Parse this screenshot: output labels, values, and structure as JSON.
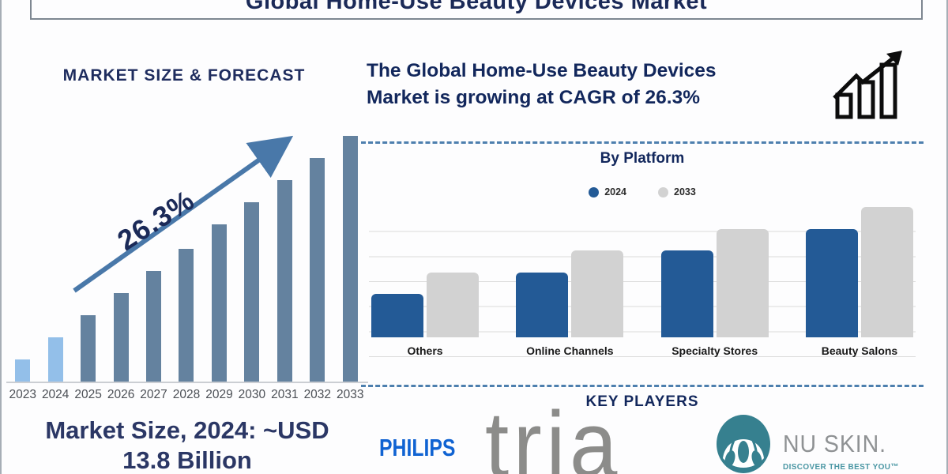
{
  "page": {
    "title": "Global Home-Use Beauty Devices Market"
  },
  "left_panel": {
    "heading": "MARKET SIZE & FORECAST",
    "footer_line1": "Market Size, 2024: ~USD",
    "footer_line2": "13.8 Billion"
  },
  "right_panel": {
    "headline_line1": "The Global Home-Use Beauty Devices",
    "headline_line2": "Market is growing at CAGR of 26.3%",
    "key_players": {
      "heading": "KEY PLAYERS",
      "philips_label": "PHILIPS",
      "tria_label": "tria",
      "nuskin_label": "NU SKIN.",
      "nuskin_tagline": "DISCOVER THE BEST YOU™"
    }
  },
  "icons": {
    "growth": "growth-chart-icon",
    "nuskin_mark": "nu-skin-logo-icon"
  },
  "colors": {
    "navy_text": "#1b2a58",
    "forecast_bar": "#64829f",
    "forecast_bar_highlight": "#93bfe9",
    "platform_2024": "#235a96",
    "platform_2033": "#d2d2d2",
    "dashed_divider": "#4d7fae",
    "arrow": "#4978a9",
    "philips_blue": "#1063d2",
    "tria_gray": "#8c8c8a",
    "nuskin_teal": "#36808f"
  },
  "chart_data": [
    {
      "type": "bar",
      "title": "MARKET SIZE & FORECAST",
      "categories": [
        "2023",
        "2024",
        "2025",
        "2026",
        "2027",
        "2028",
        "2029",
        "2030",
        "2031",
        "2032",
        "2033"
      ],
      "values_relative": [
        9,
        18,
        27,
        36,
        45,
        54,
        64,
        73,
        82,
        91,
        100
      ],
      "highlight_categories": [
        "2023",
        "2024"
      ],
      "bar_color": "#64829f",
      "highlight_color": "#93bfe9",
      "annotation": "26.3%",
      "note": "Market Size, 2024: ~USD 13.8 Billion",
      "ylim": [
        0,
        100
      ],
      "grid": false
    },
    {
      "type": "bar",
      "title": "By Platform",
      "categories": [
        "Others",
        "Online Channels",
        "Specialty Stores",
        "Beauty Salons"
      ],
      "series": [
        {
          "name": "2024",
          "color": "#235a96",
          "values": [
            2,
            3,
            4,
            5
          ]
        },
        {
          "name": "2033",
          "color": "#d2d2d2",
          "values": [
            3,
            4,
            5,
            6
          ]
        }
      ],
      "ylim": [
        0,
        6
      ],
      "grid": true,
      "legend_position": "top-center"
    }
  ]
}
